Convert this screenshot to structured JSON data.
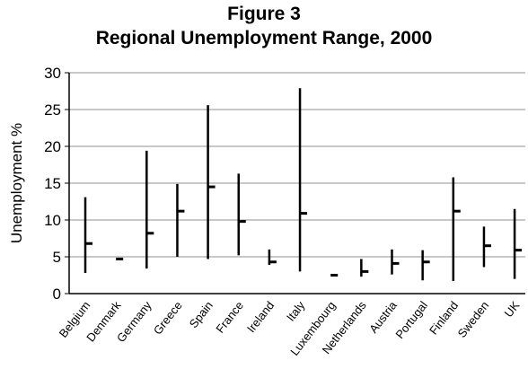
{
  "figure": {
    "label": "Figure 3"
  },
  "chart_data": {
    "type": "range",
    "title": "Regional Unemployment Range, 2000",
    "xlabel": "",
    "ylabel": "Unemployment %",
    "ylim": [
      0,
      30
    ],
    "yticks": [
      0,
      5,
      10,
      15,
      20,
      25,
      30
    ],
    "grid": "horizontal",
    "categories": [
      "Belgium",
      "Denmark",
      "Germany",
      "Greece",
      "Spain",
      "France",
      "Ireland",
      "Italy",
      "Luxembourg",
      "Netherlands",
      "Austria",
      "Portugal",
      "Finland",
      "Sweden",
      "UK"
    ],
    "series": [
      {
        "low": [
          2.8,
          null,
          3.4,
          5.0,
          4.7,
          5.2,
          3.9,
          3.0,
          null,
          2.3,
          2.6,
          1.8,
          1.7,
          3.6,
          2.0
        ],
        "high": [
          13.1,
          null,
          19.4,
          14.9,
          25.6,
          16.3,
          6.0,
          27.9,
          null,
          4.7,
          6.0,
          5.9,
          15.8,
          9.1,
          11.5
        ],
        "mean": [
          6.8,
          4.7,
          8.2,
          11.2,
          14.5,
          9.8,
          4.3,
          10.9,
          2.5,
          3.0,
          4.1,
          4.3,
          11.2,
          6.5,
          5.9
        ]
      }
    ],
    "colors": {
      "bars": "#000000",
      "grid": "#909090",
      "axis": "#000000"
    }
  }
}
